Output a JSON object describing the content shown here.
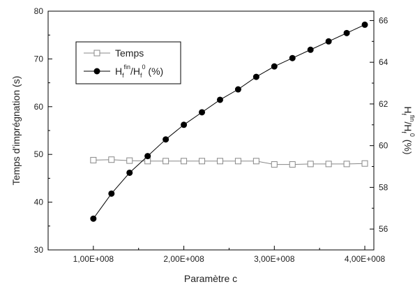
{
  "chart_data": {
    "type": "line",
    "xlabel": "Paramètre c",
    "ylabel_left": "Temps d'imprégnation (s)",
    "ylabel_right": "H_f^fin/H_f^0 (%)",
    "xlim": [
      50000000,
      410000000
    ],
    "ylim_left": [
      30,
      80
    ],
    "ylim_right": [
      55,
      66.45
    ],
    "x_ticks": [
      100000000,
      200000000,
      300000000,
      400000000
    ],
    "x_tick_labels": [
      "1,00E+008",
      "2,00E+008",
      "3,00E+008",
      "4,00E+008"
    ],
    "y_left_ticks": [
      30,
      40,
      50,
      60,
      70,
      80
    ],
    "y_right_ticks": [
      56,
      58,
      60,
      62,
      64,
      66
    ],
    "grid": false,
    "legend_position": "top-left",
    "x": [
      100000000,
      120000000,
      140000000,
      160000000,
      180000000,
      200000000,
      220000000,
      240000000,
      260000000,
      280000000,
      300000000,
      320000000,
      340000000,
      360000000,
      380000000,
      400000000
    ],
    "series": [
      {
        "name": "Temps",
        "axis": "left",
        "marker": "open-square",
        "color": "#888888",
        "values": [
          48.8,
          48.9,
          48.7,
          48.6,
          48.6,
          48.6,
          48.6,
          48.6,
          48.6,
          48.6,
          47.9,
          47.9,
          48.0,
          48.0,
          48.0,
          48.1
        ]
      },
      {
        "name": "H_f^fin/H_f^0 (%)",
        "axis": "right",
        "marker": "filled-circle",
        "color": "#000000",
        "values": [
          56.5,
          57.7,
          58.7,
          59.5,
          60.3,
          61.0,
          61.6,
          62.2,
          62.7,
          63.3,
          63.8,
          64.2,
          64.6,
          65.0,
          65.4,
          65.8
        ]
      }
    ]
  }
}
